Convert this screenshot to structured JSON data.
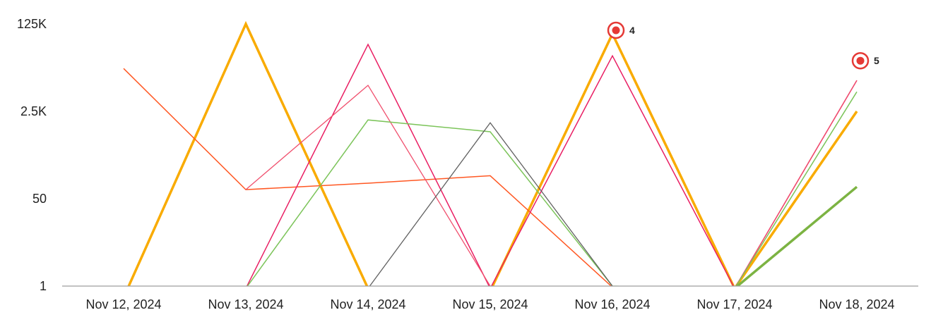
{
  "chart_data": {
    "type": "line",
    "title": "",
    "xlabel": "",
    "ylabel": "",
    "y_scale": "log",
    "ylim": [
      1,
      125000
    ],
    "grid": false,
    "legend": "none",
    "categories": [
      "Nov 12, 2024",
      "Nov 13, 2024",
      "Nov 14, 2024",
      "Nov 15, 2024",
      "Nov 16, 2024",
      "Nov 17, 2024",
      "Nov 18, 2024"
    ],
    "y_ticks": [
      {
        "value": 1,
        "label": "1"
      },
      {
        "value": 50,
        "label": "50"
      },
      {
        "value": 2500,
        "label": "2.5K"
      },
      {
        "value": 125000,
        "label": "125K"
      }
    ],
    "series": [
      {
        "color": "#f9ab00",
        "width": 3.5,
        "values": [
          0.6,
          125000,
          0.9,
          0.8,
          80000,
          0.9,
          2500
        ]
      },
      {
        "color": "#ff5722",
        "width": 1.5,
        "values": [
          17000,
          75,
          100,
          140,
          0.95,
          null,
          null
        ]
      },
      {
        "color": "#e91e63",
        "width": 1.5,
        "values": [
          0.7,
          0.9,
          50000,
          0.9,
          30000,
          0.9,
          10000
        ]
      },
      {
        "color": "#f0506e",
        "width": 1.3,
        "values": [
          null,
          75,
          8000,
          1,
          null,
          0.9,
          10000
        ]
      },
      {
        "color": "#7cc45a",
        "width": 1.5,
        "values": [
          null,
          0.9,
          1700,
          1000,
          1,
          0.9,
          6000
        ]
      },
      {
        "color": "#616161",
        "width": 1.3,
        "values": [
          null,
          null,
          0.9,
          1500,
          1,
          null,
          null
        ]
      },
      {
        "color": "#7cb342",
        "width": 3.5,
        "values": [
          null,
          null,
          null,
          null,
          null,
          0.9,
          85
        ]
      }
    ],
    "annotations": [
      {
        "category": "Nov 16, 2024",
        "value": 125000,
        "label": "4",
        "icon": "target-icon",
        "color": "#e53935"
      },
      {
        "category": "Nov 18, 2024",
        "value": 32000,
        "label": "5",
        "icon": "target-icon",
        "color": "#e53935"
      }
    ]
  }
}
